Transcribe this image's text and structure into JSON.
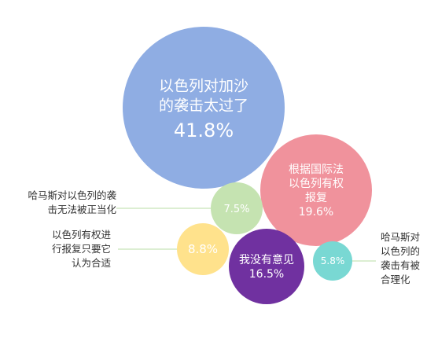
{
  "chart_data": {
    "type": "bubble",
    "title": "",
    "unit": "%",
    "series": [
      {
        "label_lines": [
          "以色列对加沙",
          "的袭击太过了"
        ],
        "value": 41.8,
        "value_text": "41.8%",
        "color": "#8fade3",
        "text_color": "#ffffff",
        "label_position": "inside"
      },
      {
        "label_lines": [
          "根据国际法",
          "以色列有权",
          "报复"
        ],
        "value": 19.6,
        "value_text": "19.6%",
        "color": "#f0929c",
        "text_color": "#ffffff",
        "label_position": "inside"
      },
      {
        "label_lines": [
          "我没有意见"
        ],
        "value": 16.5,
        "value_text": "16.5%",
        "color": "#7031a0",
        "text_color": "#ffffff",
        "label_position": "inside"
      },
      {
        "label_lines": [
          "以色列有权进",
          "行报复只要它",
          "认为合适"
        ],
        "value": 8.8,
        "value_text": "8.8%",
        "color": "#ffe28c",
        "text_color": "#ffffff",
        "label_position": "outside-left"
      },
      {
        "label_lines": [
          "哈马斯对以色列的袭",
          "击无法被正当化"
        ],
        "value": 7.5,
        "value_text": "7.5%",
        "color": "#c5e3b1",
        "text_color": "#ffffff",
        "label_position": "outside-left"
      },
      {
        "label_lines": [
          "哈马斯对",
          "以色列的",
          "袭击有被",
          "合理化"
        ],
        "value": 5.8,
        "value_text": "5.8%",
        "color": "#79d8d3",
        "text_color": "#ffffff",
        "label_position": "outside-right"
      }
    ]
  }
}
